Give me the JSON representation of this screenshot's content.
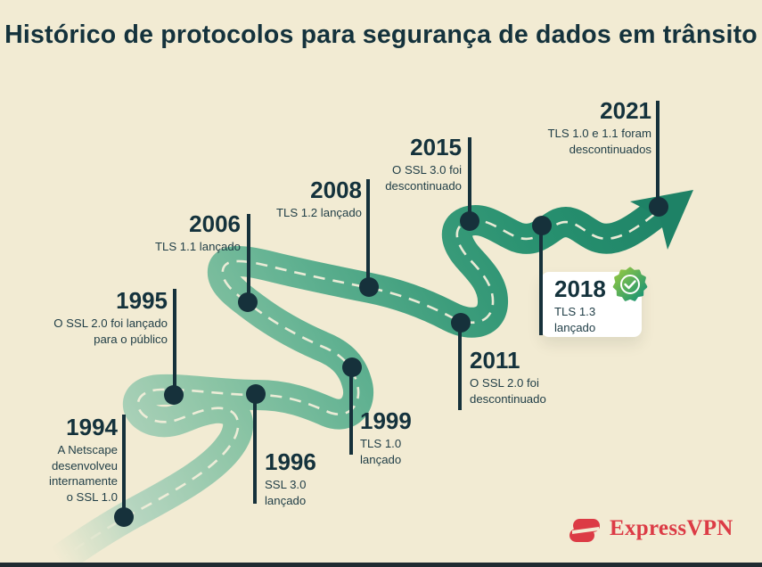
{
  "title": "Histórico de protocolos para segurança de dados em trânsito",
  "milestones": [
    {
      "year": "1994",
      "desc_lines": [
        "A Netscape",
        "desenvolveu",
        "internamente",
        "o SSL 1.0"
      ]
    },
    {
      "year": "1995",
      "desc_lines": [
        "O SSL 2.0 foi lançado",
        "para o público"
      ]
    },
    {
      "year": "1996",
      "desc_lines": [
        "SSL 3.0",
        "lançado"
      ]
    },
    {
      "year": "1999",
      "desc_lines": [
        "TLS 1.0",
        "lançado"
      ]
    },
    {
      "year": "2006",
      "desc_lines": [
        "TLS 1.1 lançado"
      ]
    },
    {
      "year": "2008",
      "desc_lines": [
        "TLS 1.2 lançado"
      ]
    },
    {
      "year": "2011",
      "desc_lines": [
        "O SSL 2.0 foi",
        "descontinuado"
      ]
    },
    {
      "year": "2015",
      "desc_lines": [
        "O SSL 3.0 foi",
        "descontinuado"
      ]
    },
    {
      "year": "2018",
      "desc_lines": [
        "TLS 1.3",
        "lançado"
      ],
      "highlighted": true,
      "badge": "check-seal"
    },
    {
      "year": "2021",
      "desc_lines": [
        "TLS 1.0 e 1.1 foram",
        "descontinuados"
      ]
    }
  ],
  "branding": {
    "logo_text": "ExpressVPN"
  },
  "colors": {
    "background": "#f2ebd3",
    "ink": "#14323c",
    "desc_ink": "#1f3d46",
    "road_start": "#c5dcc4",
    "road_end": "#1e8266",
    "road_dash": "#f5efdb",
    "marker": "#16313b",
    "brand_red": "#dc3b45",
    "badge_light": "#9ccb3f",
    "badge_dark": "#0f8f77",
    "card": "#ffffff",
    "bottom_bar": "#202b31"
  }
}
